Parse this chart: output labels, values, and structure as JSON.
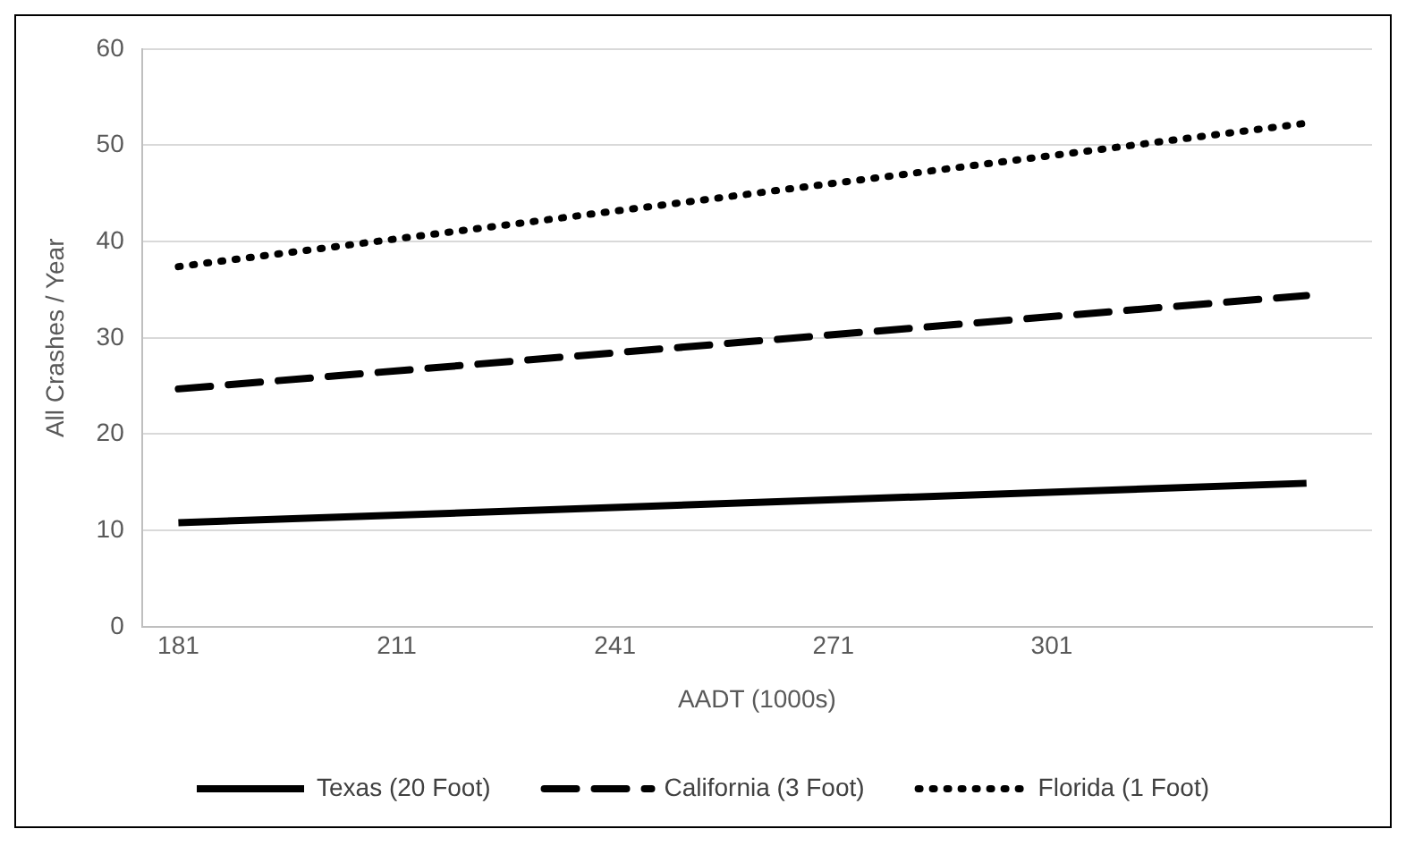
{
  "chart_data": {
    "type": "line",
    "xlabel": "AADT (1000s)",
    "ylabel": "All Crashes / Year",
    "x": [
      181,
      336
    ],
    "xlim": [
      176,
      345
    ],
    "xticks": [
      181,
      211,
      241,
      271,
      301
    ],
    "ylim": [
      0,
      60
    ],
    "yticks": [
      0,
      10,
      20,
      30,
      40,
      50,
      60
    ],
    "grid": "y",
    "legend": "bottom",
    "marker": "none",
    "series": [
      {
        "name": "Texas (20 Foot)",
        "color": "#000000",
        "values": [
          10.8,
          14.9
        ],
        "line_style": "solid"
      },
      {
        "name": "California (3 Foot)",
        "color": "#000000",
        "values": [
          24.7,
          34.4
        ],
        "line_style": "dashed"
      },
      {
        "name": "Florida (1 Foot)",
        "color": "#000000",
        "values": [
          37.4,
          52.3
        ],
        "line_style": "dotted"
      }
    ]
  }
}
